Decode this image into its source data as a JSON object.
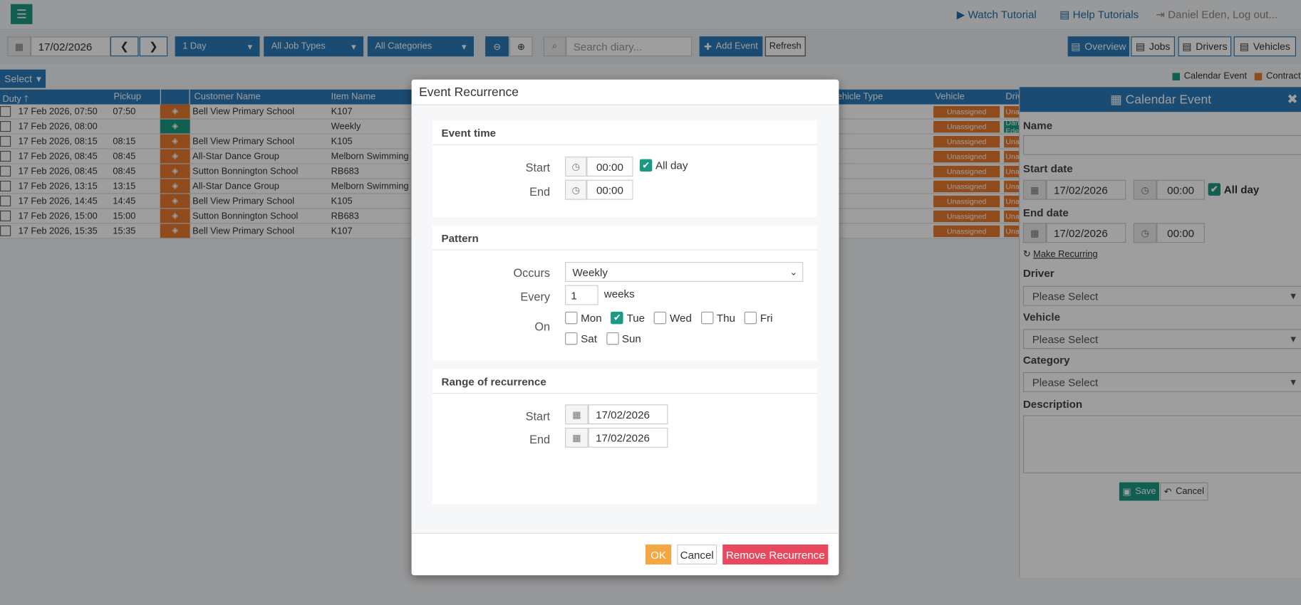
{
  "header": {
    "watch_tutorial": "Watch Tutorial",
    "help_tutorials": "Help Tutorials",
    "user": "Daniel Eden, Log out..."
  },
  "toolbar": {
    "date": "17/02/2026",
    "period": "1 Day",
    "job_types": "All Job Types",
    "categories": "All Categories",
    "search_placeholder": "Search diary...",
    "add_event": "Add Event",
    "refresh": "Refresh",
    "views": [
      "Overview",
      "Jobs",
      "Drivers",
      "Vehicles"
    ],
    "active_view": 0
  },
  "select": "Select",
  "legend": [
    {
      "name": "Calendar Event",
      "color": "#1a9a84"
    },
    {
      "name": "Contract",
      "color": "#e87a30"
    }
  ],
  "table": {
    "columns": [
      "Duty",
      "Pickup",
      null,
      "Customer Name",
      "Item Name",
      "Vehicle Type",
      "Vehicle",
      "Driver"
    ],
    "rows": [
      {
        "legend": 1,
        "cells": [
          "17 Feb 2026, 07:50",
          "07:50",
          "Bell View Primary School",
          "K107"
        ],
        "vehicle": "Unassigned",
        "driver": "Unassigned"
      },
      {
        "legend": 0,
        "cells": [
          "17 Feb 2026, 08:00",
          null,
          null,
          "Weekly"
        ],
        "vehicle": "Unassigned",
        "driver": "Daniel Eden"
      },
      {
        "legend": 1,
        "cells": [
          "17 Feb 2026, 08:15",
          "08:15",
          "Bell View Primary School",
          "K105"
        ],
        "vehicle": "Unassigned",
        "driver": "Unassigned"
      },
      {
        "legend": 1,
        "cells": [
          "17 Feb 2026, 08:45",
          "08:45",
          "All-Star Dance Group",
          "Melborn Swimming"
        ],
        "vehicle": "Unassigned",
        "driver": "Unassigned"
      },
      {
        "legend": 1,
        "cells": [
          "17 Feb 2026, 08:45",
          "08:45",
          "Sutton Bonnington School",
          "RB683"
        ],
        "vehicle": "Unassigned",
        "driver": "Unassigned"
      },
      {
        "legend": 1,
        "cells": [
          "17 Feb 2026, 13:15",
          "13:15",
          "All-Star Dance Group",
          "Melborn Swimming"
        ],
        "vehicle": "Unassigned",
        "driver": "Unassigned"
      },
      {
        "legend": 1,
        "cells": [
          "17 Feb 2026, 14:45",
          "14:45",
          "Bell View Primary School",
          "K105"
        ],
        "vehicle": "Unassigned",
        "driver": "Unassigned"
      },
      {
        "legend": 1,
        "cells": [
          "17 Feb 2026, 15:00",
          "15:00",
          "Sutton Bonnington School",
          "RB683"
        ],
        "vehicle": "Unassigned",
        "driver": "Unassigned"
      },
      {
        "legend": 1,
        "cells": [
          "17 Feb 2026, 15:35",
          "15:35",
          "Bell View Primary School",
          "K107"
        ],
        "vehicle": "Unassigned",
        "driver": "Unassigned"
      }
    ]
  },
  "modal": {
    "title": "Event Recurrence",
    "event_time": {
      "heading": "Event time",
      "start_label": "Start",
      "start": "00:00",
      "all_day": "All day",
      "all_day_checked": true,
      "end_label": "End",
      "end": "00:00"
    },
    "pattern": {
      "heading": "Pattern",
      "occurs_label": "Occurs",
      "occurs": "Weekly",
      "every_label": "Every",
      "every": 1,
      "every_unit": "weeks",
      "on_label": "On",
      "days": [
        {
          "name": "Mon",
          "checked": false
        },
        {
          "name": "Tue",
          "checked": true
        },
        {
          "name": "Wed",
          "checked": false
        },
        {
          "name": "Thu",
          "checked": false
        },
        {
          "name": "Fri",
          "checked": false
        },
        {
          "name": "Sat",
          "checked": false
        },
        {
          "name": "Sun",
          "checked": false
        }
      ]
    },
    "range": {
      "heading": "Range of recurrence",
      "start_label": "Start",
      "start": "17/02/2026",
      "end_label": "End",
      "end": "17/02/2026"
    },
    "buttons": {
      "ok": "OK",
      "cancel": "Cancel",
      "remove": "Remove Recurrence"
    }
  },
  "panel": {
    "title": "Calendar Event",
    "name_label": "Name",
    "start_date_label": "Start date",
    "start_date": "17/02/2026",
    "start_time": "00:00",
    "all_day": "All day",
    "all_day_checked": true,
    "end_date_label": "End date",
    "end_date": "17/02/2026",
    "end_time": "00:00",
    "make_recurring": "Make Recurring",
    "driver_label": "Driver",
    "driver": "Please Select",
    "vehicle_label": "Vehicle",
    "vehicle": "Please Select",
    "category_label": "Category",
    "category": "Please Select",
    "description_label": "Description",
    "save": "Save",
    "cancel": "Cancel"
  }
}
